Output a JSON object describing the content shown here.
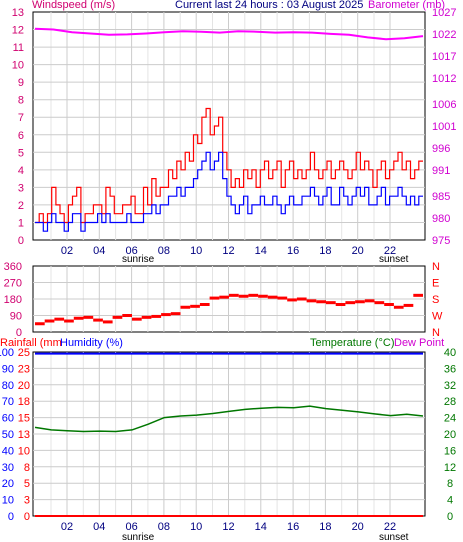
{
  "header": {
    "wind_title": "Windspeed (m/s)",
    "center_title": "Current last 24 hours : 03 August 2025",
    "baro_title": "Barometer (mb)"
  },
  "markers": {
    "sunrise": "sunrise",
    "sunset": "sunset"
  },
  "colors": {
    "wind_title": "#d0006f",
    "baro_title": "#d000d0",
    "center_title": "#000080",
    "gust": "#ff0000",
    "wind": "#0000ff",
    "baro": "#ff00ff",
    "direction": "#ff0000",
    "rain": "#ff0000",
    "humidity": "#0000ff",
    "temperature": "#007700",
    "dewpoint": "#d000d0",
    "grid": "#cccccc"
  },
  "chart_data": [
    {
      "type": "line",
      "title": "Windspeed (m/s) / Barometer (mb)",
      "x_ticks": [
        "02",
        "04",
        "06",
        "08",
        "10",
        "12",
        "14",
        "16",
        "18",
        "20",
        "22"
      ],
      "y_left_ticks": [
        0,
        1,
        2,
        3,
        4,
        5,
        6,
        7,
        8,
        9,
        10,
        11,
        12,
        13
      ],
      "y_left_range": [
        0,
        13
      ],
      "y_right_ticks": [
        975,
        980,
        985,
        991,
        996,
        1001,
        1006,
        1012,
        1017,
        1022,
        1027
      ],
      "y_right_range": [
        975,
        1027
      ],
      "series": [
        {
          "name": "Gust",
          "values": [
            1,
            1.5,
            1,
            1.5,
            3,
            2,
            1.5,
            1,
            2,
            2.5,
            3,
            1,
            1.5,
            1.5,
            2,
            2,
            1.5,
            3,
            2.5,
            1.5,
            1.5,
            2,
            2,
            2.5,
            1.5,
            1.5,
            3,
            2,
            3.5,
            2.5,
            3,
            3,
            4,
            3.5,
            4.5,
            4,
            5,
            4.5,
            6,
            5.5,
            7,
            7.5,
            6,
            6.5,
            7,
            5,
            4,
            3,
            3.5,
            3,
            4,
            3.5,
            4,
            3,
            4,
            4.5,
            3.5,
            4,
            4.5,
            3,
            4,
            4.5,
            3.5,
            4,
            3.5,
            4,
            5,
            4,
            3.5,
            4,
            4.5,
            3.5,
            4,
            4.5,
            4,
            3.5,
            4,
            5,
            4,
            4.5,
            4,
            3,
            4,
            4.5,
            3.5,
            4,
            4.5,
            5,
            4,
            4.5,
            3.5,
            4,
            4.5
          ]
        },
        {
          "name": "Wind",
          "values": [
            1,
            1,
            0.5,
            1,
            1.5,
            1,
            1,
            0.5,
            1,
            1.5,
            1.5,
            0.5,
            1,
            1,
            1,
            1.5,
            1,
            1.5,
            1,
            1,
            1,
            1,
            1.5,
            1,
            1,
            1,
            1.5,
            1.5,
            2,
            1.5,
            2,
            2,
            2.5,
            2.5,
            3,
            2.5,
            3,
            3,
            3.5,
            4,
            4.5,
            5,
            4,
            4.5,
            5,
            3.5,
            2.5,
            2,
            1.5,
            2,
            2.5,
            1.5,
            2,
            2,
            2.5,
            2,
            2,
            2.5,
            2,
            1.5,
            2,
            2.5,
            2,
            2,
            2.5,
            2.5,
            3,
            2.5,
            2,
            2.5,
            3,
            2,
            2,
            3,
            2.5,
            2,
            2.5,
            3,
            2.5,
            3,
            2,
            2,
            2.5,
            3,
            2,
            2.5,
            2.5,
            3,
            2.5,
            2,
            2.5,
            2,
            2.5
          ]
        },
        {
          "name": "Barometer",
          "values": [
            1023.2,
            1023,
            1022.4,
            1022.1,
            1021.8,
            1021.9,
            1022.1,
            1022.4,
            1022.6,
            1022.5,
            1022.3,
            1022.6,
            1022.5,
            1022.3,
            1022.4,
            1022.3,
            1022,
            1021.8,
            1021.2,
            1020.8,
            1021,
            1021.5
          ]
        }
      ]
    },
    {
      "type": "scatter",
      "title": "Wind direction",
      "x_ticks": [
        "02",
        "04",
        "06",
        "08",
        "10",
        "12",
        "14",
        "16",
        "18",
        "20",
        "22"
      ],
      "y_left_ticks": [
        0,
        90,
        180,
        270,
        360
      ],
      "y_range": [
        0,
        360
      ],
      "y_right_labels": [
        "N",
        "W",
        "S",
        "E",
        "N"
      ],
      "series": [
        {
          "name": "Direction",
          "values": [
            45,
            60,
            70,
            60,
            75,
            80,
            65,
            55,
            80,
            90,
            70,
            80,
            85,
            95,
            100,
            135,
            140,
            150,
            185,
            190,
            200,
            195,
            200,
            195,
            190,
            185,
            175,
            180,
            170,
            165,
            160,
            150,
            160,
            165,
            170,
            160,
            150,
            135,
            145,
            200
          ]
        }
      ]
    },
    {
      "type": "line",
      "title": "Rainfall / Humidity / Temperature / Dew Point",
      "x_ticks": [
        "02",
        "04",
        "06",
        "08",
        "10",
        "12",
        "14",
        "16",
        "18",
        "20",
        "22"
      ],
      "y_humidity_ticks": [
        0,
        10,
        20,
        30,
        40,
        50,
        60,
        70,
        80,
        90,
        100
      ],
      "y_rain_ticks": [
        0,
        3,
        5,
        8,
        10,
        13,
        15,
        18,
        20,
        23,
        25
      ],
      "y_temp_ticks": [
        0,
        4,
        8,
        12,
        16,
        20,
        24,
        28,
        32,
        36,
        40
      ],
      "y_temp_range": [
        0,
        40
      ],
      "series": [
        {
          "name": "Temperature",
          "values": [
            21.6,
            21,
            20.8,
            20.6,
            20.7,
            20.6,
            21,
            22.4,
            24,
            24.4,
            24.6,
            25,
            25.5,
            26,
            26.3,
            26.5,
            26.4,
            26.8,
            26.2,
            25.8,
            25.4,
            24.9,
            24.5,
            24.8,
            24.4
          ]
        },
        {
          "name": "Humidity",
          "values": [
            99,
            99,
            99,
            99,
            99,
            99,
            99,
            99,
            99,
            99,
            99,
            99,
            99,
            99,
            99,
            99,
            99,
            99,
            99,
            99,
            99,
            99,
            99,
            99,
            99
          ]
        },
        {
          "name": "Rainfall",
          "values": [
            0,
            0,
            0,
            0,
            0,
            0,
            0,
            0,
            0,
            0,
            0,
            0,
            0,
            0,
            0,
            0,
            0,
            0,
            0,
            0,
            0,
            0,
            0,
            0,
            0
          ]
        }
      ]
    }
  ],
  "bottom_header": {
    "rain_label": "Rainfall (mm",
    "humidity_label": "Humidity (%)",
    "temp_label": "Temperature (°C)",
    "dew_label": "Dew Point"
  }
}
